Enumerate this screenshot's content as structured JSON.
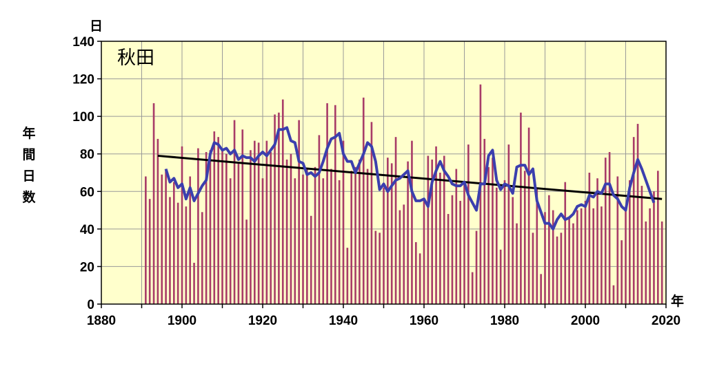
{
  "chart_data": {
    "type": "bar",
    "station": "秋田",
    "y_unit": "日",
    "x_unit": "年",
    "ylabel": "年間日数",
    "xlim": [
      1880,
      2020
    ],
    "ylim": [
      0,
      140
    ],
    "x_ticks": [
      1880,
      1900,
      1920,
      1940,
      1960,
      1980,
      2000,
      2020
    ],
    "y_ticks": [
      0,
      20,
      40,
      60,
      80,
      100,
      120,
      140
    ],
    "grid": true,
    "colors": {
      "bars": "#a83c68",
      "moving_average": "#3b3fae",
      "trend": "#000000",
      "plot_background": "#ffffcc",
      "grid": "#999999"
    },
    "bars": {
      "name": "",
      "x": [
        1891,
        1892,
        1893,
        1894,
        1895,
        1896,
        1897,
        1898,
        1899,
        1900,
        1901,
        1902,
        1903,
        1904,
        1905,
        1906,
        1907,
        1908,
        1909,
        1910,
        1911,
        1912,
        1913,
        1914,
        1915,
        1916,
        1917,
        1918,
        1919,
        1920,
        1921,
        1922,
        1923,
        1924,
        1925,
        1926,
        1927,
        1928,
        1929,
        1930,
        1931,
        1932,
        1933,
        1934,
        1935,
        1936,
        1937,
        1938,
        1939,
        1940,
        1941,
        1942,
        1943,
        1944,
        1945,
        1946,
        1947,
        1948,
        1949,
        1950,
        1951,
        1952,
        1953,
        1954,
        1955,
        1956,
        1957,
        1958,
        1959,
        1960,
        1961,
        1962,
        1963,
        1964,
        1965,
        1966,
        1967,
        1968,
        1969,
        1970,
        1971,
        1972,
        1973,
        1974,
        1975,
        1976,
        1977,
        1978,
        1979,
        1980,
        1981,
        1982,
        1983,
        1984,
        1985,
        1986,
        1987,
        1988,
        1989,
        1990,
        1991,
        1992,
        1993,
        1994,
        1995,
        1996,
        1997,
        1998,
        1999,
        2000,
        2001,
        2002,
        2003,
        2004,
        2005,
        2006,
        2007,
        2008,
        2009,
        2010,
        2011,
        2012,
        2013,
        2014,
        2015,
        2016,
        2017,
        2018,
        2019
      ],
      "values": [
        68,
        56,
        107,
        88,
        69,
        72,
        57,
        65,
        54,
        84,
        52,
        68,
        22,
        83,
        49,
        81,
        82,
        92,
        89,
        82,
        80,
        67,
        98,
        75,
        93,
        45,
        82,
        87,
        86,
        67,
        87,
        81,
        101,
        102,
        109,
        77,
        80,
        67,
        98,
        69,
        72,
        47,
        73,
        90,
        67,
        107,
        72,
        106,
        66,
        87,
        30,
        71,
        73,
        77,
        110,
        72,
        97,
        39,
        38,
        62,
        78,
        75,
        89,
        50,
        53,
        76,
        87,
        33,
        27,
        56,
        79,
        77,
        84,
        70,
        79,
        48,
        58,
        72,
        55,
        65,
        85,
        17,
        39,
        117,
        88,
        73,
        78,
        62,
        29,
        66,
        85,
        57,
        43,
        102,
        71,
        94,
        38,
        62,
        16,
        49,
        58,
        50,
        36,
        38,
        65,
        46,
        43,
        50,
        51,
        55,
        70,
        51,
        67,
        52,
        78,
        81,
        10,
        68,
        34,
        51,
        66,
        89,
        96,
        63,
        44,
        51,
        60,
        71,
        44
      ]
    },
    "moving_average": {
      "name": "",
      "x": [
        1896,
        1897,
        1898,
        1899,
        1900,
        1901,
        1902,
        1903,
        1904,
        1905,
        1906,
        1907,
        1908,
        1909,
        1910,
        1911,
        1912,
        1913,
        1914,
        1915,
        1916,
        1917,
        1918,
        1919,
        1920,
        1921,
        1922,
        1923,
        1924,
        1925,
        1926,
        1927,
        1928,
        1929,
        1930,
        1931,
        1932,
        1933,
        1934,
        1935,
        1936,
        1937,
        1938,
        1939,
        1940,
        1941,
        1942,
        1943,
        1944,
        1945,
        1946,
        1947,
        1948,
        1949,
        1950,
        1951,
        1952,
        1953,
        1954,
        1955,
        1956,
        1957,
        1958,
        1959,
        1960,
        1961,
        1962,
        1963,
        1964,
        1965,
        1966,
        1967,
        1968,
        1969,
        1970,
        1971,
        1972,
        1973,
        1974,
        1975,
        1976,
        1977,
        1978,
        1979,
        1980,
        1981,
        1982,
        1983,
        1984,
        1985,
        1986,
        1987,
        1988,
        1989,
        1990,
        1991,
        1992,
        1993,
        1994,
        1995,
        1996,
        1997,
        1998,
        1999,
        2000,
        2001,
        2002,
        2003,
        2004,
        2005,
        2006,
        2007,
        2008,
        2009,
        2010,
        2011,
        2012,
        2013,
        2014,
        2015,
        2016,
        2017
      ],
      "values": [
        72,
        65,
        67,
        62,
        64,
        56,
        62,
        55,
        59,
        63,
        66,
        80,
        86,
        85,
        82,
        83,
        80,
        82,
        77,
        79,
        78,
        78,
        76,
        79,
        81,
        79,
        82,
        85,
        93,
        93,
        94,
        87,
        86,
        76,
        75,
        69,
        70,
        68,
        70,
        76,
        83,
        88,
        89,
        91,
        80,
        76,
        76,
        70,
        75,
        80,
        86,
        84,
        76,
        61,
        64,
        60,
        63,
        66,
        67,
        69,
        71,
        60,
        55,
        55,
        56,
        52,
        65,
        71,
        76,
        71,
        68,
        64,
        63,
        63,
        65,
        58,
        54,
        50,
        64,
        64,
        79,
        82,
        66,
        61,
        64,
        63,
        59,
        73,
        74,
        74,
        69,
        72,
        55,
        49,
        43,
        43,
        40,
        45,
        48,
        45,
        46,
        48,
        52,
        53,
        52,
        58,
        57,
        60,
        59,
        64,
        64,
        58,
        56,
        52,
        50,
        62,
        70,
        77,
        72,
        66,
        60,
        54
      ]
    },
    "trend": {
      "name": "",
      "x": [
        1894,
        2019
      ],
      "y": [
        79,
        56
      ]
    }
  }
}
